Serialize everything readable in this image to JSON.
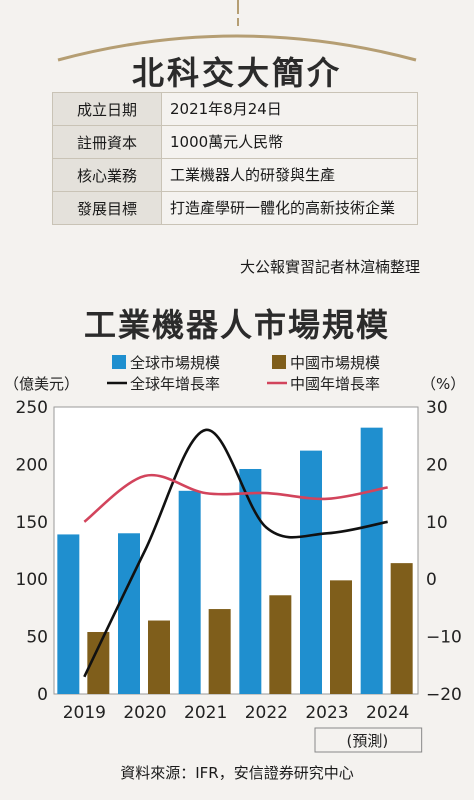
{
  "intro": {
    "title": "北科交大簡介",
    "rows": [
      {
        "key": "成立日期",
        "value": "2021年8月24日"
      },
      {
        "key": "註冊資本",
        "value": "1000萬元人民幣"
      },
      {
        "key": "核心業務",
        "value": "工業機器人的研發與生產"
      },
      {
        "key": "發展目標",
        "value": "打造產學研一體化的高新技術企業"
      }
    ],
    "credit": "大公報實習記者林渲楠整理"
  },
  "chart_title": "工業機器人市場規模",
  "source": "資料來源：IFR，安信證券研究中心",
  "colors": {
    "global_bar": "#1f8fcf",
    "china_bar": "#7f5e1b",
    "global_line": "#111111",
    "china_line": "#d2445c"
  },
  "chart_data": {
    "type": "bar",
    "title": "工業機器人市場規模",
    "categories": [
      "2019",
      "2020",
      "2021",
      "2022",
      "2023",
      "2024"
    ],
    "category_note": {
      "category": "2024",
      "text": "(預測)"
    },
    "left_axis": {
      "label": "（億美元）",
      "ylim": [
        0,
        250
      ],
      "ticks": [
        0,
        50,
        100,
        150,
        200,
        250
      ]
    },
    "right_axis": {
      "label": "（%）",
      "ylim": [
        -20,
        30
      ],
      "ticks": [
        -20,
        -10,
        0,
        10,
        20,
        30
      ]
    },
    "grid": false,
    "legend_position": "top",
    "series": [
      {
        "name": "全球市場規模",
        "kind": "bar",
        "axis": "left",
        "values": [
          139,
          140,
          177,
          196,
          212,
          232
        ]
      },
      {
        "name": "中國市場規模",
        "kind": "bar",
        "axis": "left",
        "values": [
          54,
          64,
          74,
          86,
          99,
          114
        ]
      },
      {
        "name": "全球年增長率",
        "kind": "line",
        "axis": "right",
        "values": [
          -17,
          5,
          26,
          9,
          8,
          10
        ]
      },
      {
        "name": "中國年增長率",
        "kind": "line",
        "axis": "right",
        "values": [
          10,
          18,
          15,
          15,
          14,
          16
        ]
      }
    ]
  }
}
